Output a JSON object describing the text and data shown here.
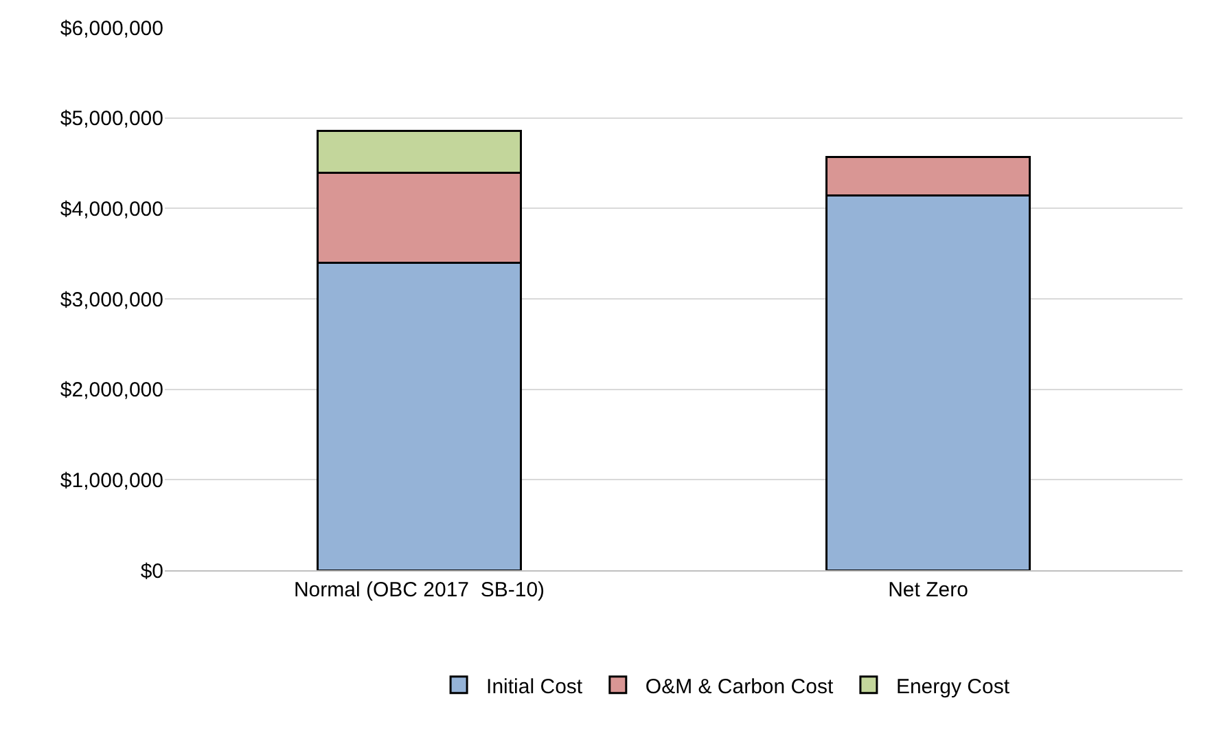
{
  "chart_data": {
    "type": "bar",
    "stacked": true,
    "categories": [
      "Normal (OBC 2017  SB-10)",
      "Net Zero"
    ],
    "series": [
      {
        "name": "Initial Cost",
        "color": "#95b3d7",
        "values": [
          3400000,
          4140000
        ]
      },
      {
        "name": "O&M & Carbon Cost",
        "color": "#d99694",
        "values": [
          990000,
          430000
        ]
      },
      {
        "name": "Energy Cost",
        "color": "#c3d69b",
        "values": [
          470000,
          null
        ]
      }
    ],
    "ylim": [
      0,
      6000000
    ],
    "yticks": [
      {
        "value": 0,
        "label": "$0"
      },
      {
        "value": 1000000,
        "label": "$1,000,000"
      },
      {
        "value": 2000000,
        "label": "$2,000,000"
      },
      {
        "value": 3000000,
        "label": "$3,000,000"
      },
      {
        "value": 4000000,
        "label": "$4,000,000"
      },
      {
        "value": 5000000,
        "label": "$5,000,000"
      },
      {
        "value": 6000000,
        "label": "$6,000,000"
      }
    ],
    "grid": "y",
    "legend": "bottom"
  }
}
